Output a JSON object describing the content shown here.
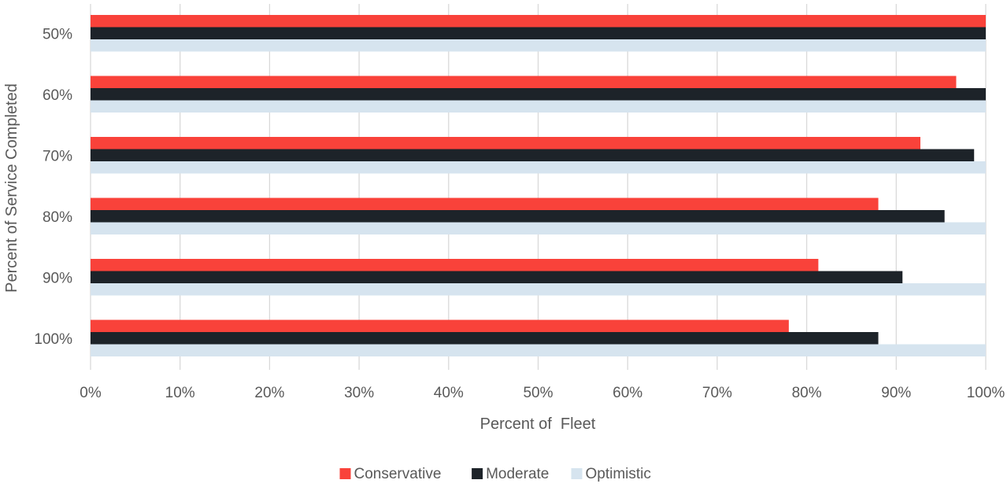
{
  "chart_data": {
    "type": "bar",
    "orientation": "horizontal",
    "title": "",
    "xlabel": "Percent of  Fleet",
    "ylabel": "Percent of Service Completed",
    "categories": [
      "50%",
      "60%",
      "70%",
      "80%",
      "90%",
      "100%"
    ],
    "series": [
      {
        "name": "Conservative",
        "color": "#f9423a",
        "values": [
          100,
          96.7,
          92.7,
          88,
          81.3,
          78
        ]
      },
      {
        "name": "Moderate",
        "color": "#1d2329",
        "values": [
          100,
          100,
          98.7,
          95.4,
          90.7,
          88
        ]
      },
      {
        "name": "Optimistic",
        "color": "#d6e4ef",
        "values": [
          100,
          100,
          100,
          100,
          100,
          100
        ]
      }
    ],
    "xlim": [
      0,
      100
    ],
    "xticks": [
      "0%",
      "10%",
      "20%",
      "30%",
      "40%",
      "50%",
      "60%",
      "70%",
      "80%",
      "90%",
      "100%"
    ],
    "grid": "vertical",
    "legend": "bottom-center",
    "grid_color": "#d9d9d9"
  }
}
